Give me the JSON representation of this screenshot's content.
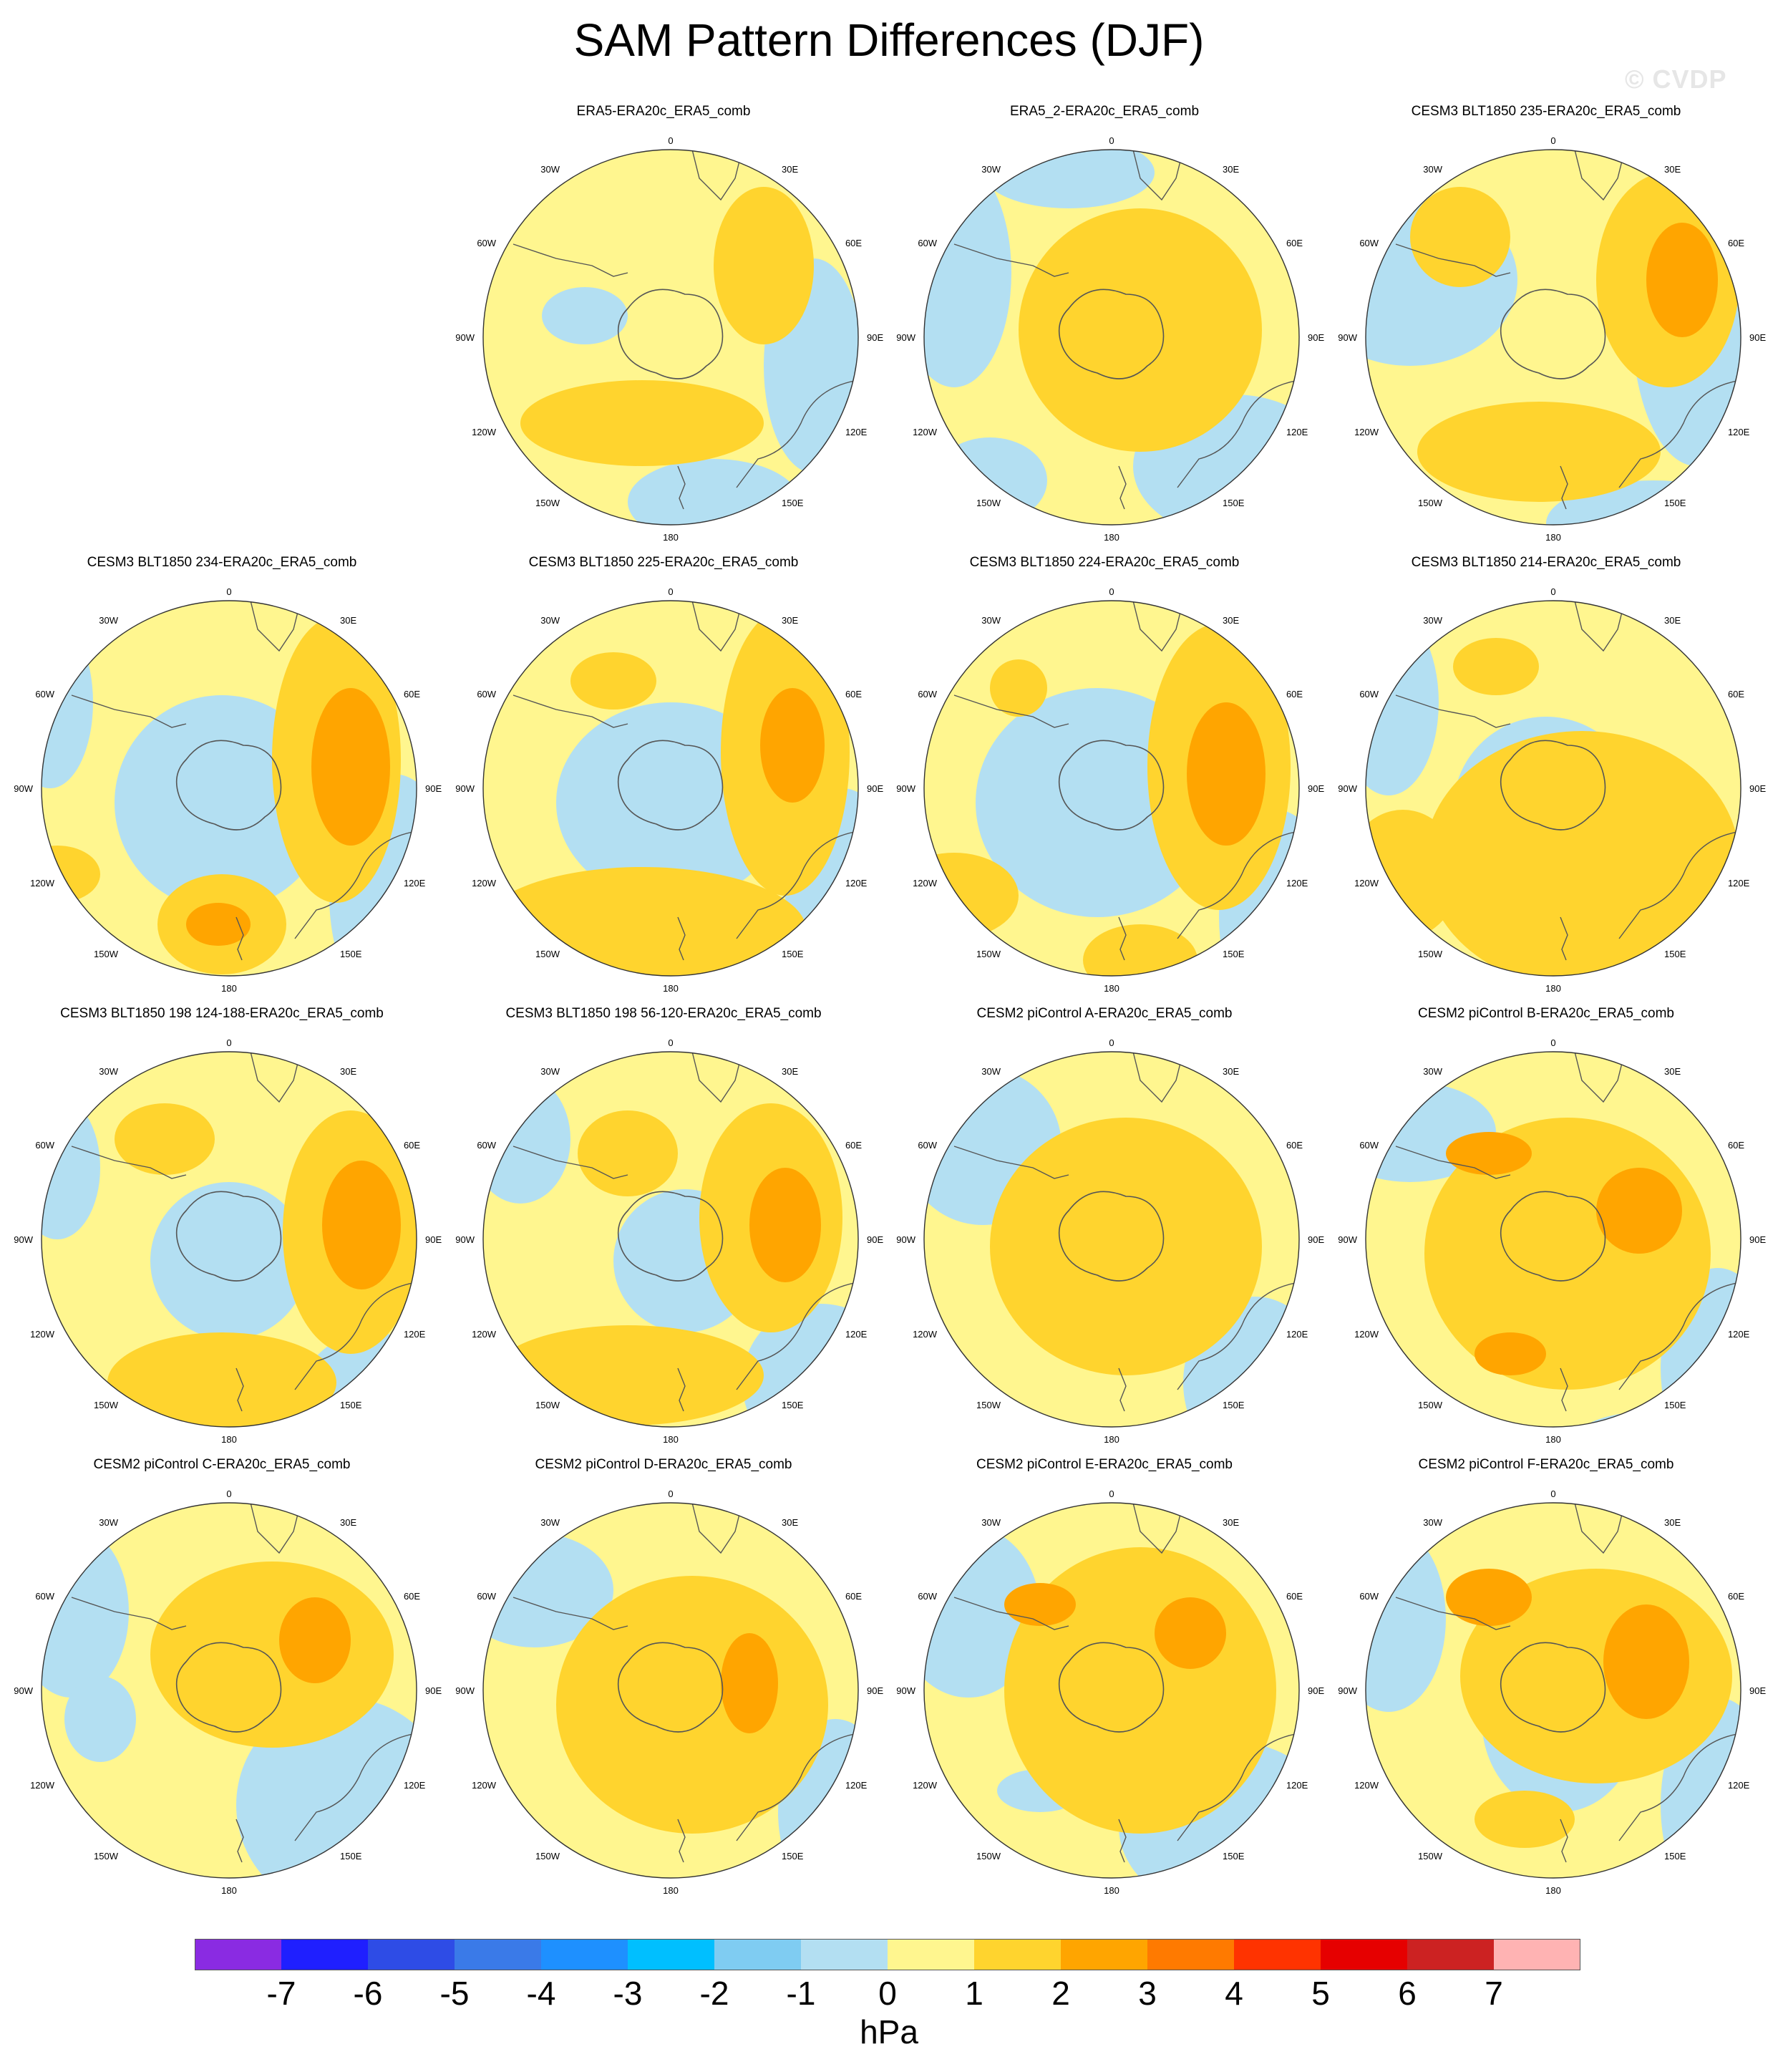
{
  "title": "SAM Pattern Differences (DJF)",
  "watermark": "© CVDP",
  "colors": {
    "neg": "#b3dff2",
    "pos1": "#fff68f",
    "pos2": "#ffd42e",
    "pos3": "#ffa500",
    "pos4": "#ff7a00",
    "negA": "#7fccf2",
    "coast": "#555555",
    "frame": "#333333"
  },
  "map_labels": {
    "north": "0",
    "south": "180",
    "ul": "30W",
    "ur": "30E",
    "ml_upper": "60W",
    "mr_upper": "60E",
    "west": "90W",
    "east": "90E",
    "ml_lower": "120W",
    "mr_lower": "120E",
    "ll": "150W",
    "lr": "150E"
  },
  "panels": [
    {
      "title": "ERA5-ERA20c_ERA5_comb"
    },
    {
      "title": "ERA5_2-ERA20c_ERA5_comb"
    },
    {
      "title": "CESM3 BLT1850 235-ERA20c_ERA5_comb"
    },
    {
      "title": "CESM3 BLT1850 234-ERA20c_ERA5_comb"
    },
    {
      "title": "CESM3 BLT1850 225-ERA20c_ERA5_comb"
    },
    {
      "title": "CESM3 BLT1850 224-ERA20c_ERA5_comb"
    },
    {
      "title": "CESM3 BLT1850 214-ERA20c_ERA5_comb"
    },
    {
      "title": "CESM3 BLT1850 198 124-188-ERA20c_ERA5_comb"
    },
    {
      "title": "CESM3 BLT1850 198 56-120-ERA20c_ERA5_comb"
    },
    {
      "title": "CESM2 piControl A-ERA20c_ERA5_comb"
    },
    {
      "title": "CESM2 piControl B-ERA20c_ERA5_comb"
    },
    {
      "title": "CESM2 piControl C-ERA20c_ERA5_comb"
    },
    {
      "title": "CESM2 piControl D-ERA20c_ERA5_comb"
    },
    {
      "title": "CESM2 piControl E-ERA20c_ERA5_comb"
    },
    {
      "title": "CESM2 piControl F-ERA20c_ERA5_comb"
    }
  ],
  "colorbar": {
    "colors": [
      "#8a2be2",
      "#1f1fff",
      "#2e4ce6",
      "#3a7ae8",
      "#1e90ff",
      "#00bfff",
      "#7fccf2",
      "#b3dff2",
      "#fff68f",
      "#ffd42e",
      "#ffa500",
      "#ff7a00",
      "#ff3300",
      "#e60000",
      "#cc2222",
      "#ffb3b3"
    ],
    "ticks": [
      "-7",
      "-6",
      "-5",
      "-4",
      "-3",
      "-2",
      "-1",
      "0",
      "1",
      "2",
      "3",
      "4",
      "5",
      "6",
      "7"
    ],
    "units": "hPa"
  }
}
